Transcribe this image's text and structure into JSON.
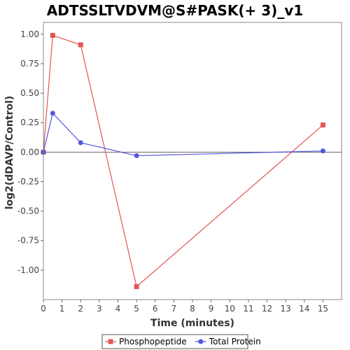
{
  "chart_data": {
    "type": "line",
    "title": "ADTSSLTVDVM@S#PASK(+ 3)_v1",
    "xlabel": "Time (minutes)",
    "ylabel": "log2(dDAVP/Control)",
    "xlim": [
      0,
      16
    ],
    "ylim": [
      -1.25,
      1.1
    ],
    "x_ticks": [
      0,
      1,
      2,
      3,
      4,
      5,
      6,
      7,
      8,
      9,
      10,
      11,
      12,
      13,
      14,
      15
    ],
    "y_ticks": [
      -1.0,
      -0.75,
      -0.5,
      -0.25,
      0.0,
      0.25,
      0.5,
      0.75,
      1.0
    ],
    "x_tick_labels": [
      "0",
      "1",
      "2",
      "3",
      "4",
      "5",
      "6",
      "7",
      "8",
      "9",
      "10",
      "11",
      "12",
      "13",
      "14",
      "15"
    ],
    "y_tick_labels": [
      "-1.00",
      "-0.75",
      "-0.50",
      "-0.25",
      "0.00",
      "0.25",
      "0.50",
      "0.75",
      "1.00"
    ],
    "grid": false,
    "zero_line": true,
    "legend_position": "bottom-center",
    "series": [
      {
        "name": "Phosphopeptide",
        "color": "#e05555",
        "marker": "square",
        "x": [
          0,
          0.5,
          2,
          5,
          15
        ],
        "y": [
          0.0,
          0.99,
          0.91,
          -1.14,
          0.23
        ]
      },
      {
        "name": "Total Protein",
        "color": "#5555e0",
        "marker": "circle",
        "x": [
          0,
          0.5,
          2,
          5,
          15
        ],
        "y": [
          0.0,
          0.33,
          0.08,
          -0.03,
          0.01
        ]
      }
    ]
  }
}
